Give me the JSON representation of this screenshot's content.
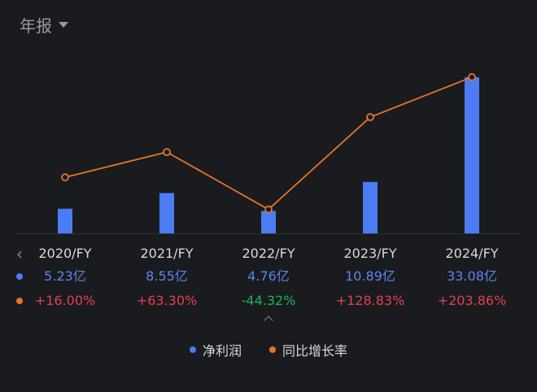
{
  "period_selector": {
    "label": "年报"
  },
  "colors": {
    "bar": "#4b7cf3",
    "line": "#e7742a",
    "positive": "#e0414f",
    "negative": "#1fb15a",
    "background": "#1a1b1e"
  },
  "rows": {
    "years": [
      "2020/FY",
      "2021/FY",
      "2022/FY",
      "2023/FY",
      "2024/FY"
    ],
    "net_profit": [
      "5.23亿",
      "8.55亿",
      "4.76亿",
      "10.89亿",
      "33.08亿"
    ],
    "yoy_growth": [
      "+16.00%",
      "+63.30%",
      "-44.32%",
      "+128.83%",
      "+203.86%"
    ]
  },
  "legend": {
    "net_profit": "净利润",
    "yoy_growth": "同比增长率"
  },
  "chart_data": {
    "type": "bar",
    "categories": [
      "2020/FY",
      "2021/FY",
      "2022/FY",
      "2023/FY",
      "2024/FY"
    ],
    "series": [
      {
        "name": "净利润",
        "type": "bar",
        "unit": "亿",
        "values": [
          5.23,
          8.55,
          4.76,
          10.89,
          33.08
        ]
      },
      {
        "name": "同比增长率",
        "type": "line",
        "unit": "%",
        "values": [
          16.0,
          63.3,
          -44.32,
          128.83,
          203.86
        ]
      }
    ],
    "legend_position": "bottom",
    "grid": false
  }
}
